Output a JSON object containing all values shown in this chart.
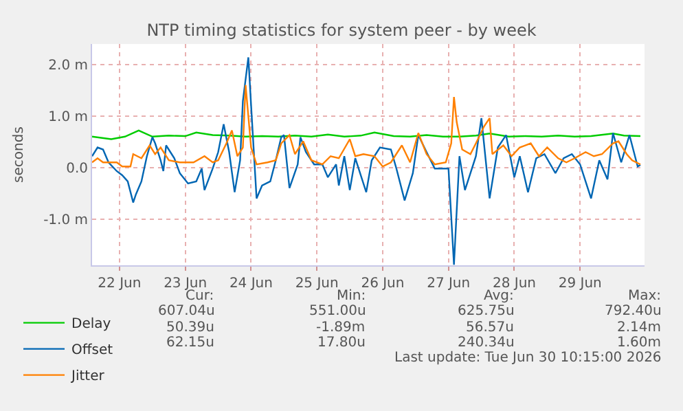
{
  "chart_data": {
    "type": "line",
    "title": "NTP timing statistics for system peer - by week",
    "ylabel": "seconds",
    "xlim": [
      "2026-06-22T02:00",
      "2026-06-30T11:30"
    ],
    "xticks": [
      {
        "value": "2026-06-22T12:00",
        "label": "22 Jun"
      },
      {
        "value": "2026-06-23T12:00",
        "label": "23 Jun"
      },
      {
        "value": "2026-06-24T12:00",
        "label": "24 Jun"
      },
      {
        "value": "2026-06-25T12:00",
        "label": "25 Jun"
      },
      {
        "value": "2026-06-26T12:00",
        "label": "26 Jun"
      },
      {
        "value": "2026-06-27T12:00",
        "label": "27 Jun"
      },
      {
        "value": "2026-06-28T12:00",
        "label": "28 Jun"
      },
      {
        "value": "2026-06-29T12:00",
        "label": "29 Jun"
      }
    ],
    "ylim": [
      -1.9,
      2.4
    ],
    "yticks": [
      {
        "value": -1,
        "label": "-1.0 m"
      },
      {
        "value": 0,
        "label": "0.0"
      },
      {
        "value": 1,
        "label": "1.0 m"
      },
      {
        "value": 2,
        "label": "2.0 m"
      }
    ],
    "grid": true,
    "legend": "bottom left",
    "series": [
      {
        "name": "Delay",
        "color": "#00cc00",
        "x": [
          "2026-06-22T02:00",
          "2026-06-22T09:00",
          "2026-06-22T14:00",
          "2026-06-22T19:00",
          "2026-06-23T00:00",
          "2026-06-23T06:00",
          "2026-06-23T12:00",
          "2026-06-23T16:00",
          "2026-06-23T22:00",
          "2026-06-24T04:00",
          "2026-06-24T10:00",
          "2026-06-24T16:00",
          "2026-06-24T22:00",
          "2026-06-25T04:00",
          "2026-06-25T10:00",
          "2026-06-25T16:00",
          "2026-06-25T22:00",
          "2026-06-26T04:00",
          "2026-06-26T09:00",
          "2026-06-26T16:00",
          "2026-06-26T22:00",
          "2026-06-27T04:00",
          "2026-06-27T10:00",
          "2026-06-27T16:00",
          "2026-06-27T22:00",
          "2026-06-28T03:00",
          "2026-06-28T10:00",
          "2026-06-28T16:00",
          "2026-06-28T22:00",
          "2026-06-29T04:00",
          "2026-06-29T10:00",
          "2026-06-29T16:00",
          "2026-06-30T00:00",
          "2026-06-30T04:00",
          "2026-06-30T10:00"
        ],
        "values": [
          0.6,
          0.55,
          0.6,
          0.72,
          0.6,
          0.62,
          0.61,
          0.68,
          0.63,
          0.62,
          0.6,
          0.61,
          0.6,
          0.62,
          0.6,
          0.64,
          0.6,
          0.62,
          0.68,
          0.61,
          0.6,
          0.63,
          0.6,
          0.6,
          0.62,
          0.66,
          0.6,
          0.61,
          0.6,
          0.62,
          0.6,
          0.61,
          0.66,
          0.62,
          0.61
        ]
      },
      {
        "name": "Offset",
        "color": "#0066b3",
        "x": [
          "2026-06-22T02:00",
          "2026-06-22T04:00",
          "2026-06-22T06:00",
          "2026-06-22T08:00",
          "2026-06-22T11:00",
          "2026-06-22T13:00",
          "2026-06-22T15:00",
          "2026-06-22T17:00",
          "2026-06-22T18:00",
          "2026-06-22T20:00",
          "2026-06-22T22:00",
          "2026-06-23T00:00",
          "2026-06-23T01:00",
          "2026-06-23T03:00",
          "2026-06-23T04:00",
          "2026-06-23T05:00",
          "2026-06-23T08:00",
          "2026-06-23T10:00",
          "2026-06-23T13:00",
          "2026-06-23T16:00",
          "2026-06-23T18:00",
          "2026-06-23T19:00",
          "2026-06-23T22:00",
          "2026-06-24T00:00",
          "2026-06-24T02:00",
          "2026-06-24T04:00",
          "2026-06-24T06:00",
          "2026-06-24T08:00",
          "2026-06-24T09:00",
          "2026-06-24T11:00",
          "2026-06-24T12:00",
          "2026-06-24T14:00",
          "2026-06-24T16:00",
          "2026-06-24T19:00",
          "2026-06-24T21:00",
          "2026-06-24T23:00",
          "2026-06-25T00:00",
          "2026-06-25T02:00",
          "2026-06-25T05:00",
          "2026-06-25T06:00",
          "2026-06-25T08:00",
          "2026-06-25T11:00",
          "2026-06-25T14:00",
          "2026-06-25T16:00",
          "2026-06-25T19:00",
          "2026-06-25T20:00",
          "2026-06-25T22:00",
          "2026-06-26T00:00",
          "2026-06-26T02:00",
          "2026-06-26T06:00",
          "2026-06-26T08:00",
          "2026-06-26T11:00",
          "2026-06-26T15:00",
          "2026-06-26T17:00",
          "2026-06-26T20:00",
          "2026-06-26T23:00",
          "2026-06-27T01:00",
          "2026-06-27T04:00",
          "2026-06-27T07:00",
          "2026-06-27T12:00",
          "2026-06-27T14:00",
          "2026-06-27T16:00",
          "2026-06-27T18:00",
          "2026-06-27T22:00",
          "2026-06-28T00:00",
          "2026-06-28T03:00",
          "2026-06-28T06:00",
          "2026-06-28T09:00",
          "2026-06-28T12:00",
          "2026-06-28T14:00",
          "2026-06-28T17:00",
          "2026-06-28T20:00",
          "2026-06-28T23:00",
          "2026-06-29T03:00",
          "2026-06-29T06:00",
          "2026-06-29T09:00",
          "2026-06-29T12:00",
          "2026-06-29T16:00",
          "2026-06-29T19:00",
          "2026-06-29T22:00",
          "2026-06-30T00:00",
          "2026-06-30T03:00",
          "2026-06-30T06:00",
          "2026-06-30T09:00",
          "2026-06-30T10:00"
        ],
        "values": [
          0.22,
          0.39,
          0.35,
          0.1,
          -0.07,
          -0.15,
          -0.27,
          -0.68,
          -0.52,
          -0.27,
          0.22,
          0.59,
          0.47,
          0.14,
          -0.07,
          0.43,
          0.18,
          -0.11,
          -0.31,
          -0.27,
          -0.02,
          -0.44,
          -0.02,
          0.3,
          0.84,
          0.3,
          -0.48,
          0.14,
          1.29,
          2.14,
          1.21,
          -0.6,
          -0.35,
          -0.27,
          0.14,
          0.59,
          0.63,
          -0.4,
          0.06,
          0.59,
          0.3,
          0.06,
          0.06,
          -0.19,
          0.06,
          -0.35,
          0.22,
          -0.44,
          0.18,
          -0.48,
          0.14,
          0.39,
          0.35,
          -0.02,
          -0.64,
          -0.11,
          0.63,
          0.3,
          -0.02,
          -0.02,
          -1.89,
          0.22,
          -0.44,
          0.22,
          0.96,
          -0.6,
          0.39,
          0.63,
          -0.19,
          0.22,
          -0.48,
          0.18,
          0.26,
          -0.11,
          0.18,
          0.26,
          0.06,
          -0.6,
          0.14,
          -0.23,
          0.67,
          0.1,
          0.63,
          0.02,
          0.05
        ]
      },
      {
        "name": "Jitter",
        "color": "#ff8000",
        "x": [
          "2026-06-22T02:00",
          "2026-06-22T04:00",
          "2026-06-22T06:00",
          "2026-06-22T11:00",
          "2026-06-22T13:00",
          "2026-06-22T16:00",
          "2026-06-22T17:00",
          "2026-06-22T20:00",
          "2026-06-22T23:00",
          "2026-06-23T01:00",
          "2026-06-23T03:00",
          "2026-06-23T06:00",
          "2026-06-23T10:00",
          "2026-06-23T15:00",
          "2026-06-23T19:00",
          "2026-06-23T22:00",
          "2026-06-24T00:00",
          "2026-06-24T03:00",
          "2026-06-24T05:00",
          "2026-06-24T07:00",
          "2026-06-24T09:00",
          "2026-06-24T10:00",
          "2026-06-24T12:00",
          "2026-06-24T14:00",
          "2026-06-24T18:00",
          "2026-06-24T21:00",
          "2026-06-24T23:00",
          "2026-06-25T02:00",
          "2026-06-25T04:00",
          "2026-06-25T07:00",
          "2026-06-25T10:00",
          "2026-06-25T14:00",
          "2026-06-25T17:00",
          "2026-06-25T20:00",
          "2026-06-26T00:00",
          "2026-06-26T02:00",
          "2026-06-26T05:00",
          "2026-06-26T09:00",
          "2026-06-26T12:00",
          "2026-06-26T15:00",
          "2026-06-26T19:00",
          "2026-06-26T22:00",
          "2026-06-27T01:00",
          "2026-06-27T04:00",
          "2026-06-27T07:00",
          "2026-06-27T11:00",
          "2026-06-27T13:00",
          "2026-06-27T14:00",
          "2026-06-27T15:00",
          "2026-06-27T17:00",
          "2026-06-27T20:00",
          "2026-06-27T22:00",
          "2026-06-28T01:00",
          "2026-06-28T03:00",
          "2026-06-28T04:00",
          "2026-06-28T08:00",
          "2026-06-28T11:00",
          "2026-06-28T14:00",
          "2026-06-28T18:00",
          "2026-06-28T21:00",
          "2026-06-29T00:00",
          "2026-06-29T04:00",
          "2026-06-29T07:00",
          "2026-06-29T10:00",
          "2026-06-29T14:00",
          "2026-06-29T17:00",
          "2026-06-29T20:00",
          "2026-06-30T00:00",
          "2026-06-30T02:00",
          "2026-06-30T05:00",
          "2026-06-30T07:00",
          "2026-06-30T10:00"
        ],
        "values": [
          0.1,
          0.18,
          0.1,
          0.1,
          0.02,
          0.02,
          0.26,
          0.18,
          0.43,
          0.26,
          0.39,
          0.14,
          0.1,
          0.1,
          0.22,
          0.1,
          0.14,
          0.47,
          0.72,
          0.22,
          0.39,
          1.6,
          0.39,
          0.06,
          0.1,
          0.14,
          0.47,
          0.63,
          0.26,
          0.51,
          0.14,
          0.06,
          0.22,
          0.18,
          0.55,
          0.22,
          0.26,
          0.22,
          0.02,
          0.1,
          0.43,
          0.1,
          0.67,
          0.26,
          0.06,
          0.1,
          0.47,
          1.37,
          0.88,
          0.35,
          0.26,
          0.47,
          0.8,
          0.96,
          0.26,
          0.43,
          0.22,
          0.39,
          0.47,
          0.22,
          0.39,
          0.18,
          0.1,
          0.18,
          0.3,
          0.22,
          0.26,
          0.47,
          0.51,
          0.26,
          0.14,
          0.06
        ]
      }
    ],
    "annotations": [
      "Cur:",
      "Min:",
      "Avg:",
      "Max:",
      "607.04u",
      "551.00u",
      "625.75u",
      "792.40u",
      "50.39u",
      "-1.89m",
      "56.57u",
      "2.14m",
      "62.15u",
      "17.80u",
      "240.34u",
      "1.60m",
      "Last update: Tue Jun 30 10:15:00 2026"
    ]
  }
}
